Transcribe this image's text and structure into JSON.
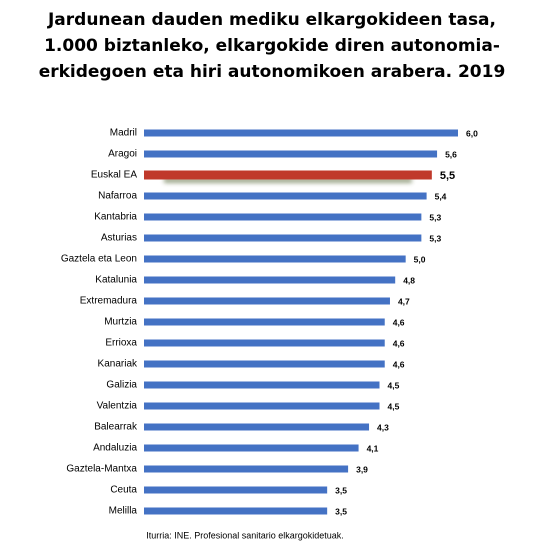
{
  "chart_data": {
    "type": "bar",
    "orientation": "horizontal",
    "title": [
      "Jardunean dauden mediku elkargokideen tasa,",
      "1.000 biztanleko, elkargokide diren autonomia-",
      "erkidegoen eta hiri autonomikoen arabera. 2019"
    ],
    "categories": [
      "Madril",
      "Aragoi",
      "Euskal EA",
      "Nafarroa",
      "Kantabria",
      "Asturias",
      "Gaztela eta Leon",
      "Katalunia",
      "Extremadura",
      "Murtzia",
      "Errioxa",
      "Kanariak",
      "Galizia",
      "Valentzia",
      "Balearrak",
      "Andaluzia",
      "Gaztela-Mantxa",
      "Ceuta",
      "Melilla"
    ],
    "values": [
      6.0,
      5.6,
      5.5,
      5.4,
      5.3,
      5.3,
      5.0,
      4.8,
      4.7,
      4.6,
      4.6,
      4.6,
      4.5,
      4.5,
      4.3,
      4.1,
      3.9,
      3.5,
      3.5
    ],
    "value_labels": [
      "6,0",
      "5,6",
      "5,5",
      "5,4",
      "5,3",
      "5,3",
      "5,0",
      "4,8",
      "4,7",
      "4,6",
      "4,6",
      "4,6",
      "4,5",
      "4,5",
      "4,3",
      "4,1",
      "3,9",
      "3,5",
      "3,5"
    ],
    "colors": [
      "#4472c4",
      "#4472c4",
      "#c0392b",
      "#4472c4",
      "#4472c4",
      "#4472c4",
      "#4472c4",
      "#4472c4",
      "#4472c4",
      "#4472c4",
      "#4472c4",
      "#4472c4",
      "#4472c4",
      "#4472c4",
      "#4472c4",
      "#4472c4",
      "#4472c4",
      "#4472c4",
      "#4472c4"
    ],
    "source": "Iturria: INE. Profesional sanitario elkargokidetuak."
  }
}
